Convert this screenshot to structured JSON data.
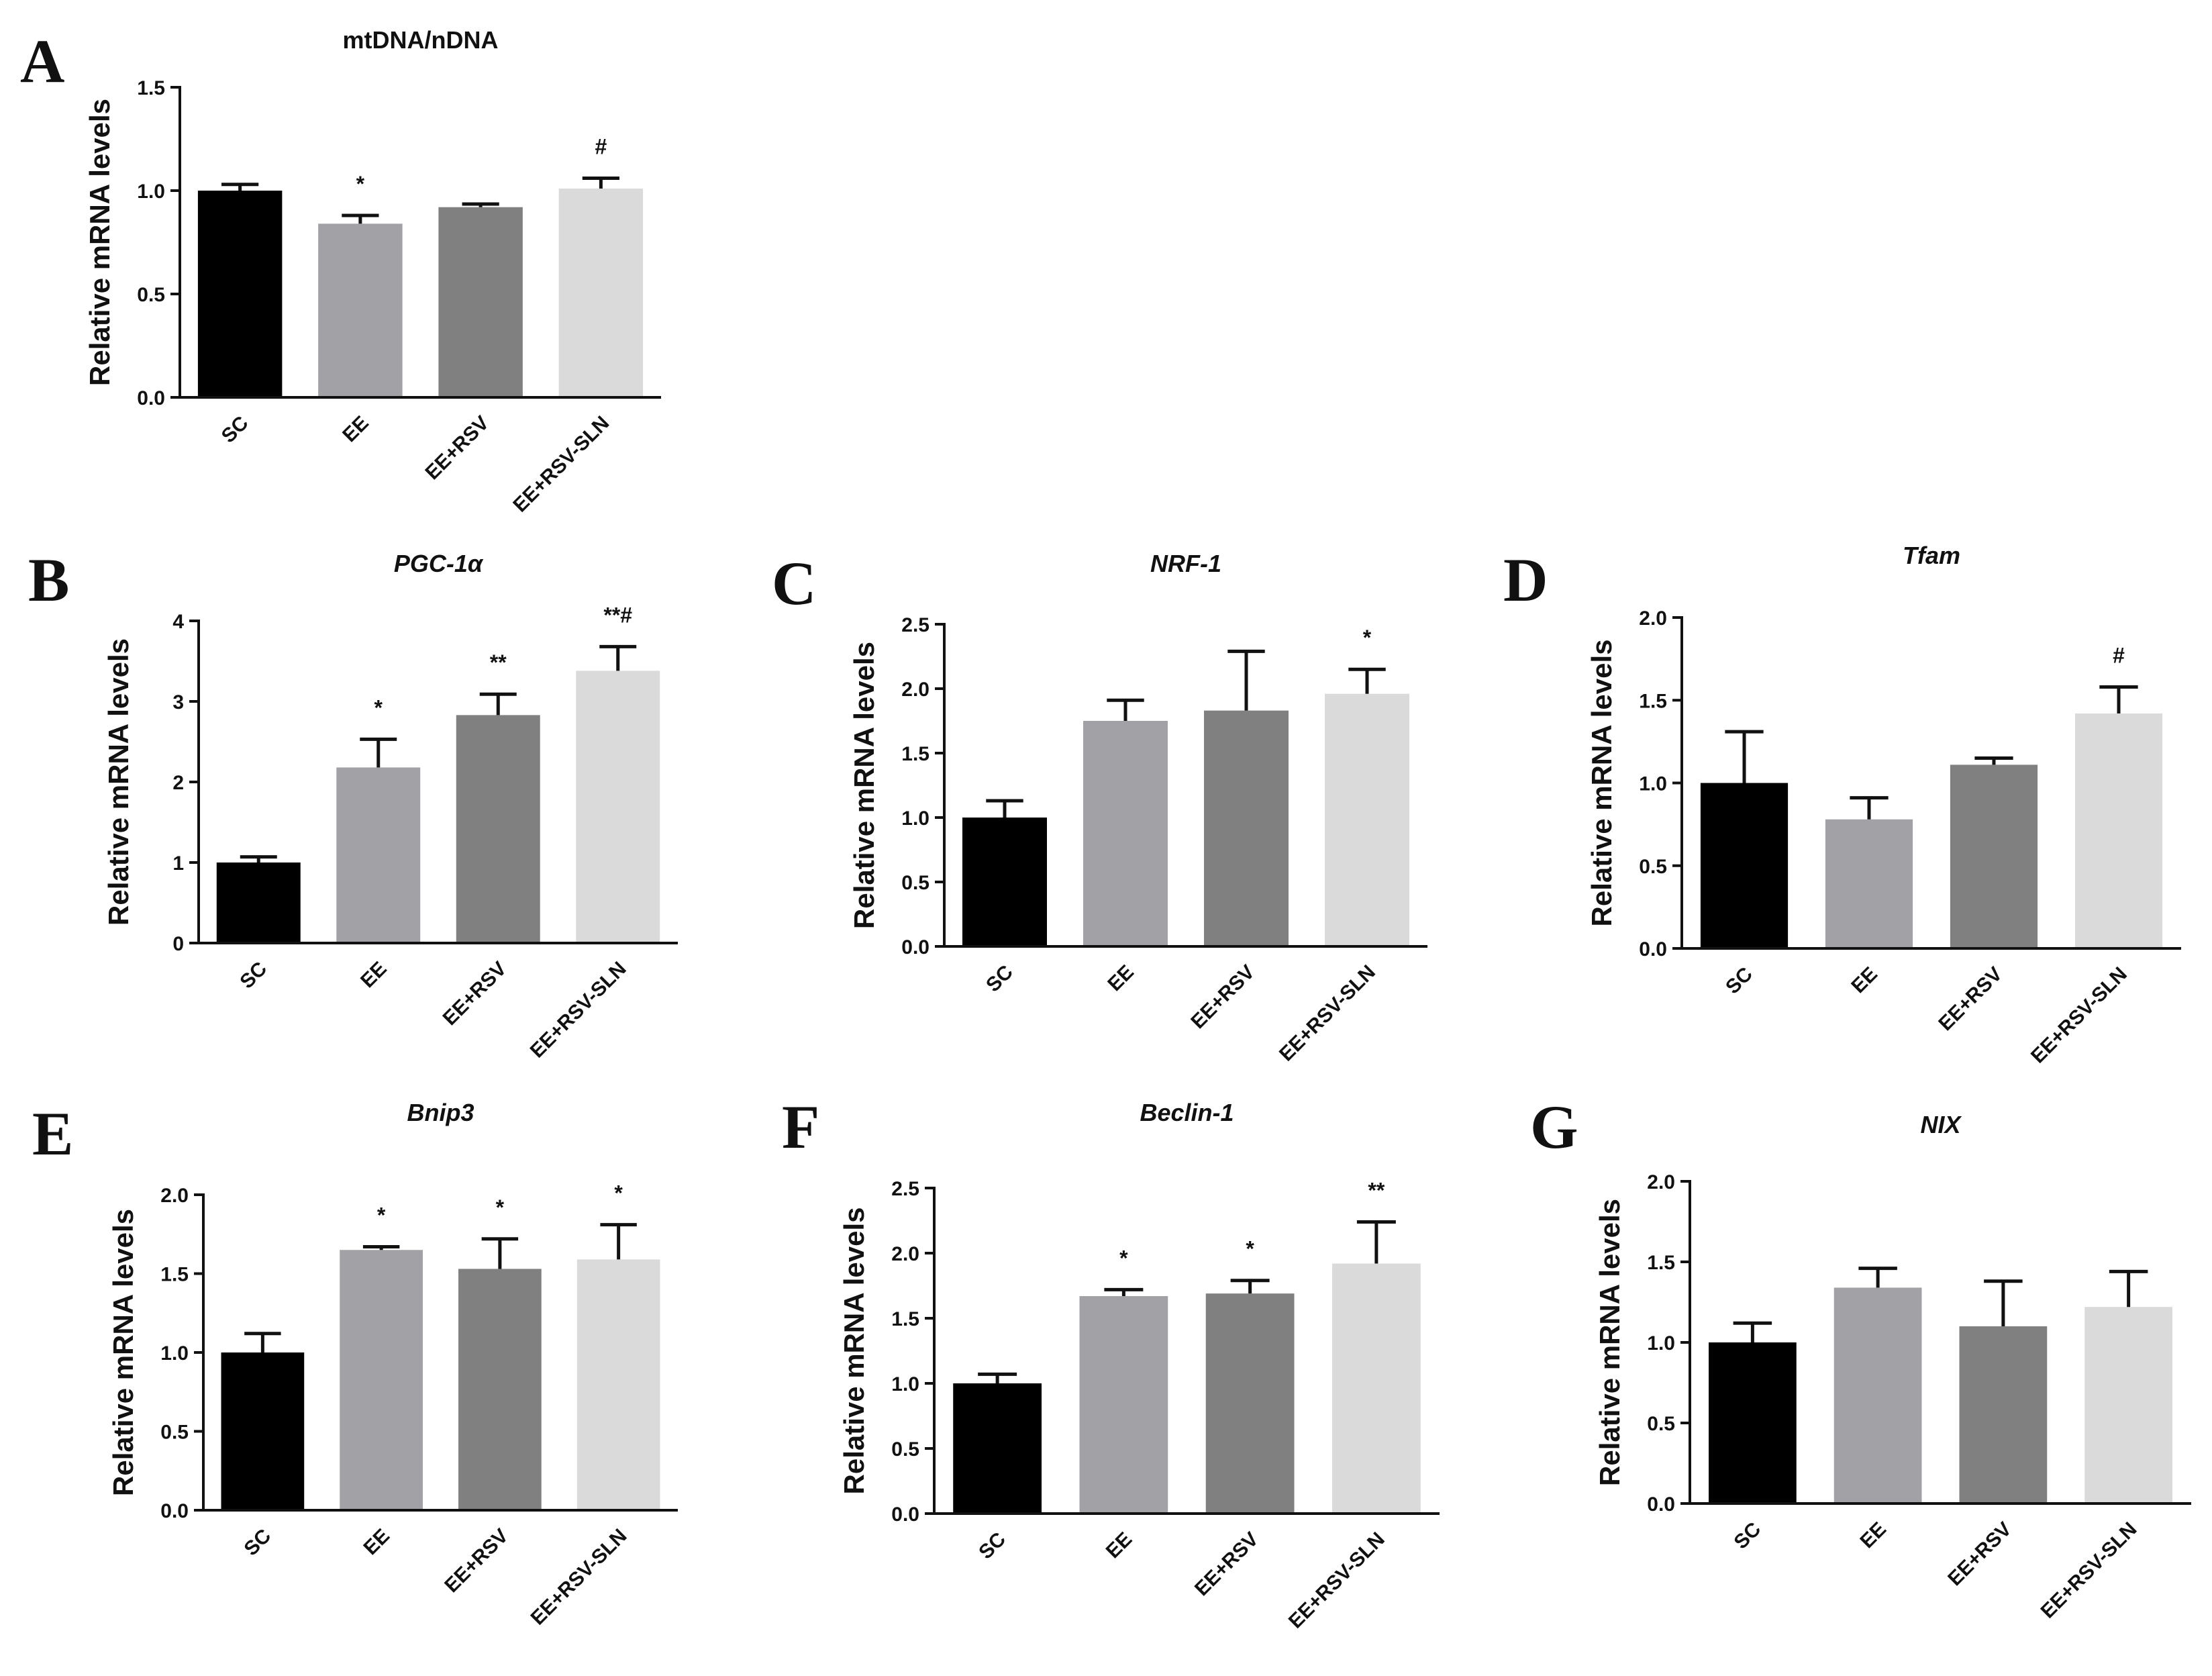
{
  "figure": {
    "background": "#ffffff",
    "ylabel": "Relative mRNA levels"
  },
  "chart_data": [
    {
      "id": "A",
      "type": "bar",
      "panel_letter": "A",
      "title": "mtDNA/nDNA",
      "title_italic": false,
      "ylabel": "Relative mRNA levels",
      "categories": [
        "SC",
        "EE",
        "EE+RSV",
        "EE+RSV-SLN"
      ],
      "values": [
        1.0,
        0.84,
        0.92,
        1.01
      ],
      "errors": [
        0.03,
        0.04,
        0.015,
        0.05
      ],
      "significance": [
        "",
        "*",
        "",
        "#"
      ],
      "colors": [
        "#000000",
        "#a2a2a6",
        "#808080",
        "#dadada"
      ],
      "ylim": [
        0,
        1.5
      ],
      "yticks": [
        0.0,
        0.5,
        1.0,
        1.5
      ],
      "ytick_labels": [
        "0.0",
        "0.5",
        "1.0",
        "1.5"
      ]
    },
    {
      "id": "B",
      "type": "bar",
      "panel_letter": "B",
      "title": "PGC-1α",
      "title_italic": true,
      "ylabel": "Relative mRNA levels",
      "categories": [
        "SC",
        "EE",
        "EE+RSV",
        "EE+RSV-SLN"
      ],
      "values": [
        1.0,
        2.18,
        2.83,
        3.38
      ],
      "errors": [
        0.07,
        0.35,
        0.26,
        0.3
      ],
      "significance": [
        "",
        "*",
        "**",
        "**#"
      ],
      "colors": [
        "#000000",
        "#a2a2a6",
        "#808080",
        "#dadada"
      ],
      "ylim": [
        0,
        4
      ],
      "yticks": [
        0,
        1,
        2,
        3,
        4
      ],
      "ytick_labels": [
        "0",
        "1",
        "2",
        "3",
        "4"
      ]
    },
    {
      "id": "C",
      "type": "bar",
      "panel_letter": "C",
      "title": "NRF-1",
      "title_italic": true,
      "ylabel": "Relative mRNA levels",
      "categories": [
        "SC",
        "EE",
        "EE+RSV",
        "EE+RSV-SLN"
      ],
      "values": [
        1.0,
        1.75,
        1.83,
        1.96
      ],
      "errors": [
        0.13,
        0.16,
        0.46,
        0.19
      ],
      "significance": [
        "",
        "",
        "",
        "*"
      ],
      "colors": [
        "#000000",
        "#a2a2a6",
        "#808080",
        "#dadada"
      ],
      "ylim": [
        0,
        2.5
      ],
      "yticks": [
        0.0,
        0.5,
        1.0,
        1.5,
        2.0,
        2.5
      ],
      "ytick_labels": [
        "0.0",
        "0.5",
        "1.0",
        "1.5",
        "2.0",
        "2.5"
      ]
    },
    {
      "id": "D",
      "type": "bar",
      "panel_letter": "D",
      "title": "Tfam",
      "title_italic": true,
      "ylabel": "Relative mRNA levels",
      "categories": [
        "SC",
        "EE",
        "EE+RSV",
        "EE+RSV-SLN"
      ],
      "values": [
        1.0,
        0.78,
        1.11,
        1.42
      ],
      "errors": [
        0.31,
        0.13,
        0.04,
        0.16
      ],
      "significance": [
        "",
        "",
        "",
        "#"
      ],
      "colors": [
        "#000000",
        "#a2a2a6",
        "#808080",
        "#dadada"
      ],
      "ylim": [
        0,
        2.0
      ],
      "yticks": [
        0.0,
        0.5,
        1.0,
        1.5,
        2.0
      ],
      "ytick_labels": [
        "0.0",
        "0.5",
        "1.0",
        "1.5",
        "2.0"
      ]
    },
    {
      "id": "E",
      "type": "bar",
      "panel_letter": "E",
      "title": "Bnip3",
      "title_italic": true,
      "ylabel": "Relative mRNA levels",
      "categories": [
        "SC",
        "EE",
        "EE+RSV",
        "EE+RSV-SLN"
      ],
      "values": [
        1.0,
        1.65,
        1.53,
        1.59
      ],
      "errors": [
        0.12,
        0.02,
        0.19,
        0.22
      ],
      "significance": [
        "",
        "*",
        "*",
        "*"
      ],
      "colors": [
        "#000000",
        "#a2a2a6",
        "#808080",
        "#dadada"
      ],
      "ylim": [
        0,
        2.0
      ],
      "yticks": [
        0.0,
        0.5,
        1.0,
        1.5,
        2.0
      ],
      "ytick_labels": [
        "0.0",
        "0.5",
        "1.0",
        "1.5",
        "2.0"
      ]
    },
    {
      "id": "F",
      "type": "bar",
      "panel_letter": "F",
      "title": "Beclin-1",
      "title_italic": true,
      "ylabel": "Relative mRNA levels",
      "categories": [
        "SC",
        "EE",
        "EE+RSV",
        "EE+RSV-SLN"
      ],
      "values": [
        1.0,
        1.67,
        1.69,
        1.92
      ],
      "errors": [
        0.07,
        0.05,
        0.1,
        0.32
      ],
      "significance": [
        "",
        "*",
        "*",
        "**"
      ],
      "colors": [
        "#000000",
        "#a2a2a6",
        "#808080",
        "#dadada"
      ],
      "ylim": [
        0,
        2.5
      ],
      "yticks": [
        0.0,
        0.5,
        1.0,
        1.5,
        2.0,
        2.5
      ],
      "ytick_labels": [
        "0.0",
        "0.5",
        "1.0",
        "1.5",
        "2.0",
        "2.5"
      ]
    },
    {
      "id": "G",
      "type": "bar",
      "panel_letter": "G",
      "title": "NIX",
      "title_italic": true,
      "ylabel": "Relative mRNA levels",
      "categories": [
        "SC",
        "EE",
        "EE+RSV",
        "EE+RSV-SLN"
      ],
      "values": [
        1.0,
        1.34,
        1.1,
        1.22
      ],
      "errors": [
        0.12,
        0.12,
        0.28,
        0.22
      ],
      "significance": [
        "",
        "",
        "",
        ""
      ],
      "colors": [
        "#000000",
        "#a2a2a6",
        "#808080",
        "#dadada"
      ],
      "ylim": [
        0,
        2.0
      ],
      "yticks": [
        0.0,
        0.5,
        1.0,
        1.5,
        2.0
      ],
      "ytick_labels": [
        "0.0",
        "0.5",
        "1.0",
        "1.5",
        "2.0"
      ]
    }
  ]
}
